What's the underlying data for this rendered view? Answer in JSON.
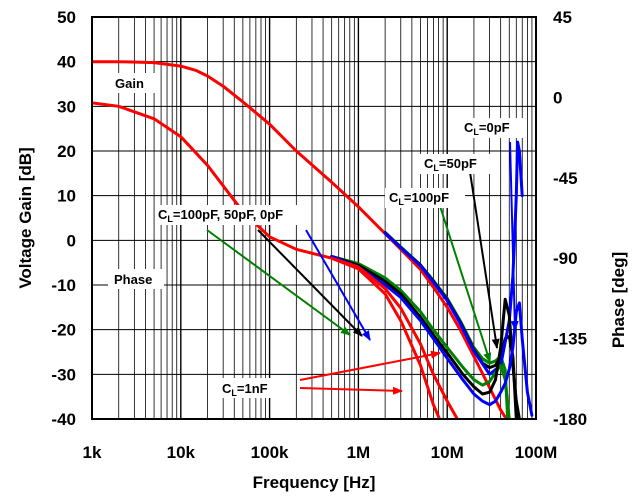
{
  "chart_data": {
    "type": "line",
    "xlabel": "Frequency [Hz]",
    "ylabel": "Voltage Gain [dB]",
    "y2label": "Phase [deg]",
    "xscale": "log",
    "xlim": [
      1000,
      100000000
    ],
    "ylim": [
      -40,
      50
    ],
    "y2lim": [
      -180,
      45
    ],
    "grid": true,
    "x_ticks": [
      {
        "v": 1000,
        "label": "1k"
      },
      {
        "v": 10000,
        "label": "10k"
      },
      {
        "v": 100000,
        "label": "100k"
      },
      {
        "v": 1000000,
        "label": "1M"
      },
      {
        "v": 10000000,
        "label": "10M"
      },
      {
        "v": 100000000,
        "label": "100M"
      }
    ],
    "y_ticks": [
      {
        "v": 50,
        "label": "50"
      },
      {
        "v": 40,
        "label": "40"
      },
      {
        "v": 30,
        "label": "30"
      },
      {
        "v": 20,
        "label": "20"
      },
      {
        "v": 10,
        "label": "10"
      },
      {
        "v": 0,
        "label": "0"
      },
      {
        "v": -10,
        "label": "-10"
      },
      {
        "v": -20,
        "label": "-20"
      },
      {
        "v": -30,
        "label": "-30"
      },
      {
        "v": -40,
        "label": "-40"
      }
    ],
    "y2_ticks": [
      {
        "v": 45,
        "label": "45"
      },
      {
        "v": 0,
        "label": "0"
      },
      {
        "v": -45,
        "label": "-45"
      },
      {
        "v": -90,
        "label": "-90"
      },
      {
        "v": -135,
        "label": "-135"
      },
      {
        "v": -180,
        "label": "-180"
      }
    ],
    "annotations": {
      "gain": "Gain",
      "phase": "Phase",
      "cl_all": "=100pF, 50pF, 0pF",
      "cl_100": "=100pF",
      "cl_50": "=50pF",
      "cl_0": "=0pF",
      "cl_1n": "=1nF",
      "c_letter": "C",
      "l_sub": "L"
    },
    "series": [
      {
        "curve": "gain",
        "axis": "left",
        "color": "#ff0000",
        "x": [
          1000,
          2000,
          5000,
          10000,
          15000,
          20000,
          30000,
          50000,
          100000,
          200000,
          500000,
          1000000,
          2000000,
          3000000,
          5000000,
          7000000,
          10000000,
          14000000,
          20000000,
          30000000,
          40000000,
          50000000
        ],
        "y": [
          40,
          40,
          39.8,
          39,
          38,
          36.8,
          34.5,
          31,
          26,
          20,
          13,
          7.5,
          1.5,
          -2,
          -6.5,
          -10.5,
          -15,
          -20,
          -26,
          -33,
          -38,
          -41
        ]
      },
      {
        "curve": "gain",
        "axis": "left",
        "name": "=100pF",
        "color": "#008000",
        "x": [
          2000000,
          3000000,
          5000000,
          7000000,
          10000000,
          14000000,
          20000000,
          25000000,
          30000000,
          35000000,
          40000000,
          45000000,
          48000000
        ],
        "y": [
          1.8,
          -1.5,
          -5.5,
          -9,
          -13,
          -18,
          -24,
          -26.5,
          -27.5,
          -27,
          -26,
          -29,
          -40
        ]
      },
      {
        "curve": "gain",
        "axis": "left",
        "name": "=50pF",
        "color": "#000000",
        "x": [
          2000000,
          3000000,
          5000000,
          7000000,
          10000000,
          14000000,
          20000000,
          25000000,
          30000000,
          35000000,
          40000000,
          45000000,
          50000000,
          55000000,
          60000000
        ],
        "y": [
          1.7,
          -1.6,
          -5.6,
          -9.2,
          -13.3,
          -18.3,
          -24.5,
          -27.5,
          -28.5,
          -28,
          -26,
          -22,
          -21.5,
          -26,
          -40
        ]
      },
      {
        "curve": "gain",
        "axis": "left",
        "name": "=0pF",
        "color": "#0000ff",
        "x": [
          2000000,
          3000000,
          5000000,
          7000000,
          10000000,
          14000000,
          20000000,
          30000000,
          40000000,
          50000000,
          55000000,
          60000000,
          62000000,
          65000000,
          70000000
        ],
        "y": [
          1.6,
          -1.7,
          -5.7,
          -9.4,
          -13.5,
          -18.6,
          -24.8,
          -30,
          -28,
          -18,
          -8,
          10,
          22,
          20,
          10
        ]
      },
      {
        "curve": "phase",
        "axis": "right",
        "color": "#ff0000",
        "x": [
          1000,
          2000,
          5000,
          10000,
          20000,
          50000,
          100000,
          200000,
          500000,
          1000000,
          2000000,
          3000000,
          5000000,
          7000000,
          10000000,
          12000000
        ],
        "y": [
          -3,
          -5,
          -12,
          -22,
          -38,
          -64,
          -78,
          -85,
          -90,
          -96,
          -110,
          -125,
          -150,
          -172,
          -190,
          -200
        ]
      },
      {
        "curve": "phase",
        "axis": "right",
        "name": "=100pF",
        "color": "#008000",
        "x": [
          500000,
          1000000,
          2000000,
          3000000,
          5000000,
          7000000,
          10000000,
          15000000,
          20000000,
          25000000,
          30000000,
          35000000,
          40000000,
          45000000,
          50000000
        ],
        "y": [
          -89,
          -93,
          -101,
          -108,
          -120,
          -130,
          -140,
          -151,
          -158,
          -161,
          -159,
          -154,
          -150,
          -158,
          -180
        ]
      },
      {
        "curve": "phase",
        "axis": "right",
        "name": "=50pF",
        "color": "#000000",
        "x": [
          500000,
          1000000,
          2000000,
          3000000,
          5000000,
          7000000,
          10000000,
          15000000,
          20000000,
          25000000,
          30000000,
          35000000,
          40000000,
          45000000,
          50000000,
          55000000,
          60000000,
          65000000
        ],
        "y": [
          -89,
          -94,
          -103,
          -110,
          -123,
          -133,
          -143,
          -155,
          -162,
          -166,
          -165,
          -158,
          -140,
          -113,
          -122,
          -150,
          -170,
          -180
        ]
      },
      {
        "curve": "phase",
        "axis": "right",
        "name": "=0pF",
        "color": "#0000ff",
        "x": [
          500000,
          1000000,
          2000000,
          3000000,
          5000000,
          7000000,
          10000000,
          15000000,
          20000000,
          25000000,
          30000000,
          35000000,
          40000000,
          45000000,
          50000000,
          55000000,
          60000000,
          65000000,
          70000000,
          80000000,
          90000000
        ],
        "y": [
          -89,
          -95,
          -105,
          -112,
          -125,
          -135,
          -146,
          -158,
          -166,
          -170,
          -172,
          -170,
          -165,
          -160,
          -152,
          -140,
          -120,
          -115,
          -135,
          -165,
          -178
        ]
      },
      {
        "curve": "phase",
        "axis": "right",
        "name": "=1nF",
        "color": "#ff0000",
        "x": [
          500000,
          1000000,
          2000000,
          3000000,
          5000000,
          7000000,
          10000000,
          13000000,
          16000000,
          18000000
        ],
        "y": [
          -90,
          -95,
          -107,
          -118,
          -138,
          -155,
          -170,
          -180,
          -190,
          -196
        ]
      }
    ]
  }
}
